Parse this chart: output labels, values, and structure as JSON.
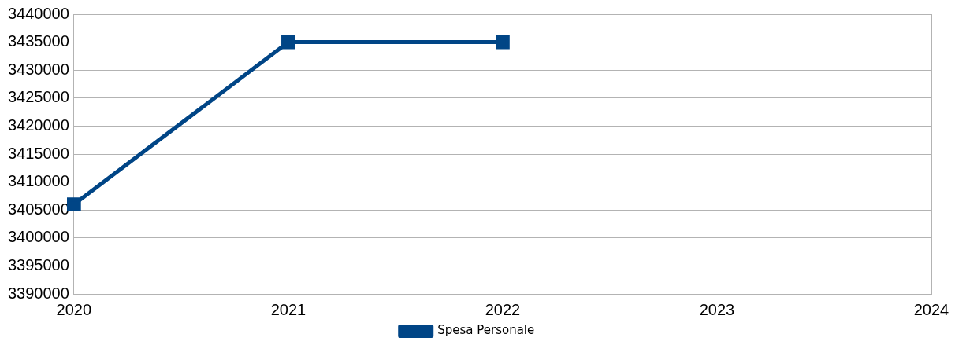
{
  "chart_data": {
    "type": "line",
    "categories": [
      "2020",
      "2021",
      "2022",
      "2023",
      "2024"
    ],
    "series": [
      {
        "name": "Spesa Personale",
        "color": "#004586",
        "values": [
          3406000,
          3435000,
          3435000,
          null,
          null
        ]
      }
    ],
    "ylim": [
      3390000,
      3440000
    ],
    "yticks": [
      3390000,
      3395000,
      3400000,
      3405000,
      3410000,
      3415000,
      3420000,
      3425000,
      3430000,
      3435000,
      3440000
    ],
    "grid": "y",
    "legend": "bottom",
    "marker": "square",
    "line_style": "solid"
  }
}
